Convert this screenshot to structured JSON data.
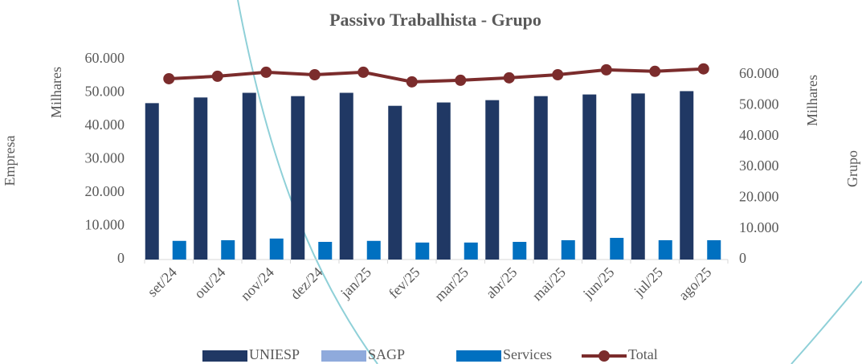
{
  "chart_data": {
    "type": "bar",
    "title": "Passivo Trabalhista - Grupo",
    "y_label": "Empresa",
    "y_unit_label": "Milhares",
    "y2_label": "Grupo",
    "y2_unit_label": "Milhares",
    "categories": [
      "set/24",
      "out/24",
      "nov/24",
      "dez/24",
      "jan/25",
      "fev/25",
      "mar/25",
      "abr/25",
      "mai/25",
      "jun/25",
      "jul/25",
      "ago/25"
    ],
    "series": [
      {
        "name": "UNIESP",
        "type": "bar",
        "color": "#203864",
        "values": [
          46900,
          48600,
          50000,
          49000,
          50000,
          46100,
          47100,
          47800,
          49000,
          49500,
          49800,
          50500
        ]
      },
      {
        "name": "SAGP",
        "type": "bar",
        "color": "#8faadc",
        "values": [
          0,
          0,
          0,
          0,
          0,
          0,
          0,
          0,
          0,
          0,
          0,
          0
        ]
      },
      {
        "name": "Services",
        "type": "bar",
        "color": "#0070c0",
        "values": [
          5600,
          5800,
          6300,
          5300,
          5600,
          5100,
          5100,
          5300,
          5800,
          6500,
          5800,
          5800
        ]
      },
      {
        "name": "Total",
        "type": "line",
        "axis": "y2",
        "color": "#7b2c2c",
        "values": [
          58700,
          59500,
          60800,
          60000,
          60800,
          57700,
          58200,
          59000,
          60000,
          61600,
          61100,
          61900
        ]
      }
    ],
    "ylim": [
      0,
      60000
    ],
    "yticks": [
      0,
      {
        "value": 10000,
        "label": "10.000"
      },
      {
        "value": 20000,
        "label": "20.000"
      },
      {
        "value": 30000,
        "label": "30.000"
      },
      {
        "value": 40000,
        "label": "40.000"
      },
      {
        "value": 50000,
        "label": "50.000"
      },
      {
        "value": 60000,
        "label": "60.000"
      }
    ],
    "y2lim": [
      0,
      60000
    ],
    "y2ticks": [
      0,
      {
        "value": 10000,
        "label": "10.000"
      },
      {
        "value": 20000,
        "label": "20.000"
      },
      {
        "value": 30000,
        "label": "30.000"
      },
      {
        "value": 40000,
        "label": "40.000"
      },
      {
        "value": 50000,
        "label": "50.000"
      },
      {
        "value": 60000,
        "label": "60.000"
      }
    ],
    "legend": "bottom"
  }
}
